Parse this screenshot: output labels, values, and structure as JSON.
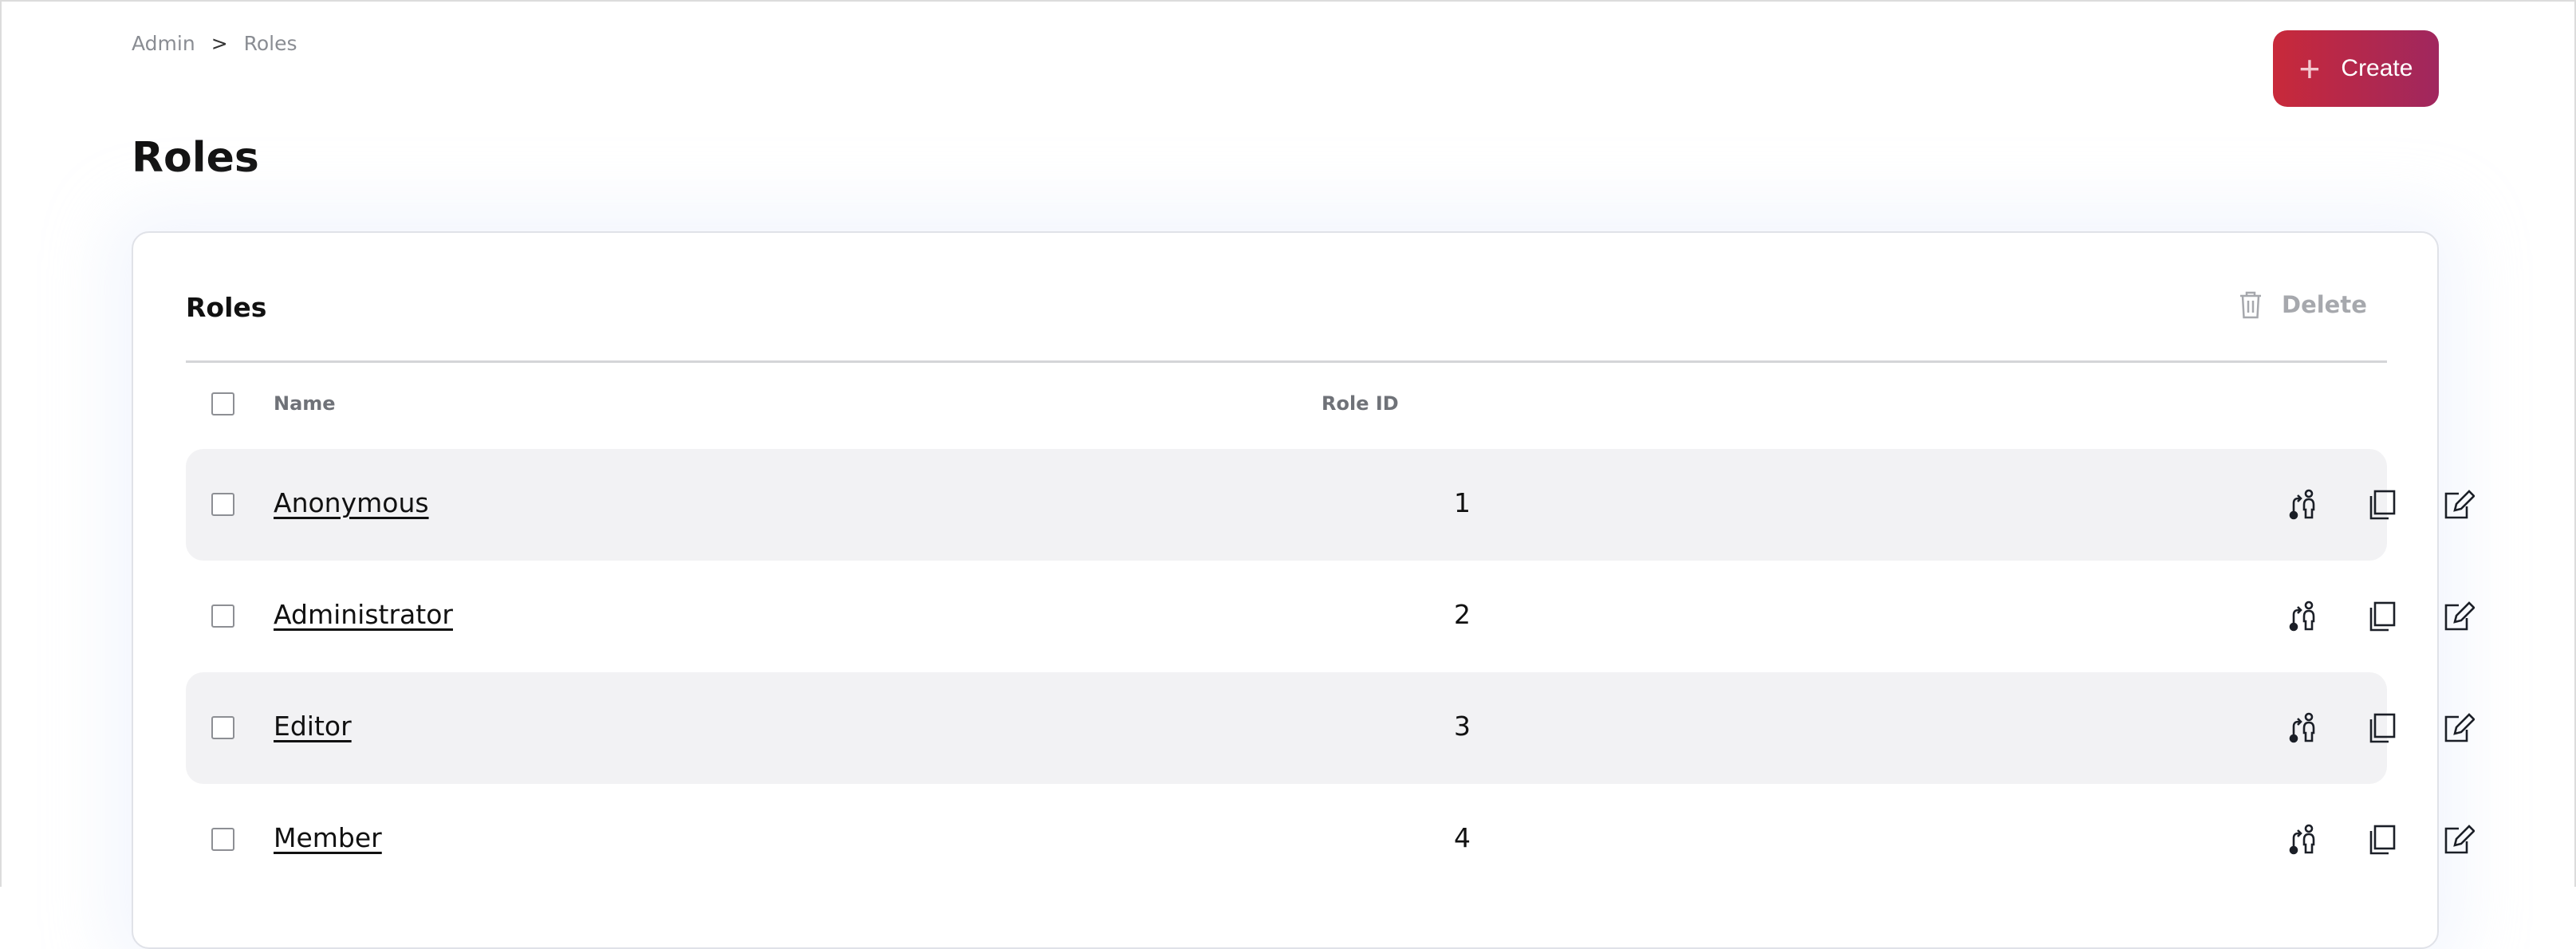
{
  "breadcrumb": {
    "items": [
      "Admin",
      "Roles"
    ],
    "separator": ">"
  },
  "create_button": {
    "label": "Create",
    "icon": "plus-icon"
  },
  "page_title": "Roles",
  "card": {
    "title": "Roles",
    "delete_label": "Delete",
    "columns": {
      "name": "Name",
      "role_id": "Role ID"
    },
    "rows": [
      {
        "name": "Anonymous",
        "role_id": "1"
      },
      {
        "name": "Administrator",
        "role_id": "2"
      },
      {
        "name": "Editor",
        "role_id": "3"
      },
      {
        "name": "Member",
        "role_id": "4"
      }
    ],
    "row_actions": [
      "assign-users-icon",
      "copy-icon",
      "edit-icon"
    ]
  },
  "colors": {
    "accent_start": "#c8293a",
    "accent_end": "#a0275e",
    "row_alt": "#f2f2f4"
  }
}
